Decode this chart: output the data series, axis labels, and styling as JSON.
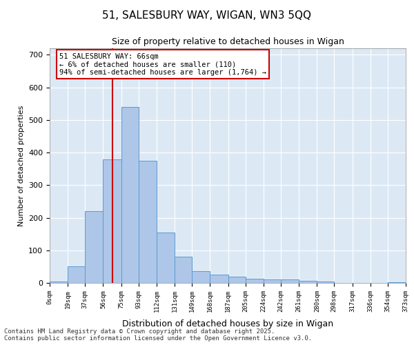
{
  "title": "51, SALESBURY WAY, WIGAN, WN3 5QQ",
  "subtitle": "Size of property relative to detached houses in Wigan",
  "xlabel": "Distribution of detached houses by size in Wigan",
  "ylabel": "Number of detached properties",
  "bar_color": "#aec6e8",
  "bar_edge_color": "#5b9bd5",
  "background_color": "#dce9f5",
  "gridcolor": "#ffffff",
  "property_line_x": 66,
  "annotation_text": "51 SALESBURY WAY: 66sqm\n← 6% of detached houses are smaller (110)\n94% of semi-detached houses are larger (1,764) →",
  "annotation_box_color": "#ffffff",
  "annotation_box_edge": "#cc0000",
  "annotation_text_size": 7.5,
  "bin_edges": [
    0,
    19,
    37,
    56,
    75,
    93,
    112,
    131,
    149,
    168,
    187,
    205,
    224,
    242,
    261,
    280,
    298,
    317,
    336,
    354,
    373
  ],
  "bin_counts": [
    5,
    50,
    220,
    380,
    540,
    375,
    155,
    80,
    35,
    25,
    20,
    12,
    10,
    10,
    7,
    4,
    1,
    1,
    0,
    3
  ],
  "ylim": [
    0,
    720
  ],
  "yticks": [
    0,
    100,
    200,
    300,
    400,
    500,
    600,
    700
  ],
  "footer_text": "Contains HM Land Registry data © Crown copyright and database right 2025.\nContains public sector information licensed under the Open Government Licence v3.0.",
  "footer_fontsize": 6.5,
  "title_fontsize": 11,
  "subtitle_fontsize": 9,
  "xlabel_fontsize": 9,
  "ylabel_fontsize": 8
}
